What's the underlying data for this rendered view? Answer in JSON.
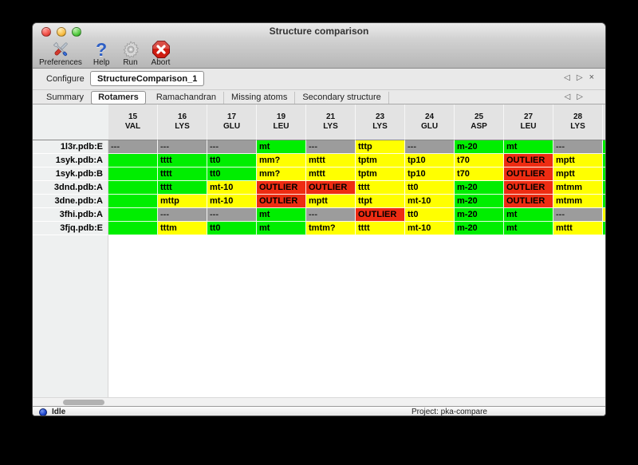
{
  "window": {
    "title": "Structure comparison"
  },
  "toolbar": {
    "items": [
      {
        "label": "Preferences",
        "icon": "tools-icon"
      },
      {
        "label": "Help",
        "icon": "question-mark-icon"
      },
      {
        "label": "Run",
        "icon": "gear-icon"
      },
      {
        "label": "Abort",
        "icon": "abort-icon"
      }
    ]
  },
  "configure": {
    "label": "Configure",
    "value": "StructureComparison_1"
  },
  "pager": {
    "prev": "◁",
    "next": "▷",
    "close": "×"
  },
  "tabs": {
    "selected": "Rotamers",
    "items": [
      "Summary",
      "Rotamers",
      "Ramachandran",
      "Missing atoms",
      "Secondary structure"
    ]
  },
  "table": {
    "columns": [
      {
        "num": "15",
        "res": "VAL"
      },
      {
        "num": "16",
        "res": "LYS"
      },
      {
        "num": "17",
        "res": "GLU"
      },
      {
        "num": "19",
        "res": "LEU"
      },
      {
        "num": "21",
        "res": "LYS"
      },
      {
        "num": "23",
        "res": "LYS"
      },
      {
        "num": "24",
        "res": "GLU"
      },
      {
        "num": "25",
        "res": "ASP"
      },
      {
        "num": "27",
        "res": "LEU"
      },
      {
        "num": "28",
        "res": "LYS"
      },
      {
        "num": "",
        "res": ""
      }
    ],
    "rows": [
      {
        "label": "1l3r.pdb:E",
        "cells": [
          {
            "t": "---",
            "c": "gray"
          },
          {
            "t": "---",
            "c": "gray"
          },
          {
            "t": "---",
            "c": "gray"
          },
          {
            "t": "mt",
            "c": "green"
          },
          {
            "t": "---",
            "c": "gray"
          },
          {
            "t": "tttp",
            "c": "yellow"
          },
          {
            "t": "---",
            "c": "gray"
          },
          {
            "t": "m-20",
            "c": "green"
          },
          {
            "t": "mt",
            "c": "green"
          },
          {
            "t": "---",
            "c": "gray"
          },
          {
            "t": "",
            "c": "green"
          }
        ]
      },
      {
        "label": "1syk.pdb:A",
        "cells": [
          {
            "t": "",
            "c": "green"
          },
          {
            "t": "tttt",
            "c": "green"
          },
          {
            "t": "tt0",
            "c": "green"
          },
          {
            "t": "mm?",
            "c": "yellow"
          },
          {
            "t": "mttt",
            "c": "yellow"
          },
          {
            "t": "tptm",
            "c": "yellow"
          },
          {
            "t": "tp10",
            "c": "yellow"
          },
          {
            "t": "t70",
            "c": "yellow"
          },
          {
            "t": "OUTLIER",
            "c": "red"
          },
          {
            "t": "mptt",
            "c": "yellow"
          },
          {
            "t": "",
            "c": "green"
          }
        ]
      },
      {
        "label": "1syk.pdb:B",
        "cells": [
          {
            "t": "",
            "c": "green"
          },
          {
            "t": "tttt",
            "c": "green"
          },
          {
            "t": "tt0",
            "c": "green"
          },
          {
            "t": "mm?",
            "c": "yellow"
          },
          {
            "t": "mttt",
            "c": "yellow"
          },
          {
            "t": "tptm",
            "c": "yellow"
          },
          {
            "t": "tp10",
            "c": "yellow"
          },
          {
            "t": "t70",
            "c": "yellow"
          },
          {
            "t": "OUTLIER",
            "c": "red"
          },
          {
            "t": "mptt",
            "c": "yellow"
          },
          {
            "t": "",
            "c": "green"
          }
        ]
      },
      {
        "label": "3dnd.pdb:A",
        "cells": [
          {
            "t": "",
            "c": "green"
          },
          {
            "t": "tttt",
            "c": "green"
          },
          {
            "t": "mt-10",
            "c": "yellow"
          },
          {
            "t": "OUTLIER",
            "c": "red"
          },
          {
            "t": "OUTLIER",
            "c": "red"
          },
          {
            "t": "tttt",
            "c": "yellow"
          },
          {
            "t": "tt0",
            "c": "yellow"
          },
          {
            "t": "m-20",
            "c": "green"
          },
          {
            "t": "OUTLIER",
            "c": "red"
          },
          {
            "t": "mtmm",
            "c": "yellow"
          },
          {
            "t": "",
            "c": "green"
          }
        ]
      },
      {
        "label": "3dne.pdb:A",
        "cells": [
          {
            "t": "",
            "c": "green"
          },
          {
            "t": "mttp",
            "c": "yellow"
          },
          {
            "t": "mt-10",
            "c": "yellow"
          },
          {
            "t": "OUTLIER",
            "c": "red"
          },
          {
            "t": "mptt",
            "c": "yellow"
          },
          {
            "t": "ttpt",
            "c": "yellow"
          },
          {
            "t": "mt-10",
            "c": "yellow"
          },
          {
            "t": "m-20",
            "c": "green"
          },
          {
            "t": "OUTLIER",
            "c": "red"
          },
          {
            "t": "mtmm",
            "c": "yellow"
          },
          {
            "t": "",
            "c": "green"
          }
        ]
      },
      {
        "label": "3fhi.pdb:A",
        "cells": [
          {
            "t": "",
            "c": "green"
          },
          {
            "t": "---",
            "c": "gray"
          },
          {
            "t": "---",
            "c": "gray"
          },
          {
            "t": "mt",
            "c": "green"
          },
          {
            "t": "---",
            "c": "gray"
          },
          {
            "t": "OUTLIER",
            "c": "red"
          },
          {
            "t": "tt0",
            "c": "yellow"
          },
          {
            "t": "m-20",
            "c": "green"
          },
          {
            "t": "mt",
            "c": "green"
          },
          {
            "t": "---",
            "c": "gray"
          },
          {
            "t": "",
            "c": "yellow"
          }
        ]
      },
      {
        "label": "3fjq.pdb:E",
        "cells": [
          {
            "t": "",
            "c": "green"
          },
          {
            "t": "tttm",
            "c": "yellow"
          },
          {
            "t": "tt0",
            "c": "green"
          },
          {
            "t": "mt",
            "c": "green"
          },
          {
            "t": "tmtm?",
            "c": "yellow"
          },
          {
            "t": "tttt",
            "c": "yellow"
          },
          {
            "t": "mt-10",
            "c": "yellow"
          },
          {
            "t": "m-20",
            "c": "green"
          },
          {
            "t": "mt",
            "c": "green"
          },
          {
            "t": "mttt",
            "c": "yellow"
          },
          {
            "t": "",
            "c": "green"
          }
        ]
      }
    ]
  },
  "statusbar": {
    "status": "Idle",
    "project": "Project: pka-compare"
  },
  "colors": {
    "favored": "#00ee00",
    "allowed": "#ffff00",
    "outlier": "#ee2c12",
    "missing": "#9c9c9c",
    "accent_blue": "#2e5fc4",
    "abort_red": "#c41616"
  }
}
